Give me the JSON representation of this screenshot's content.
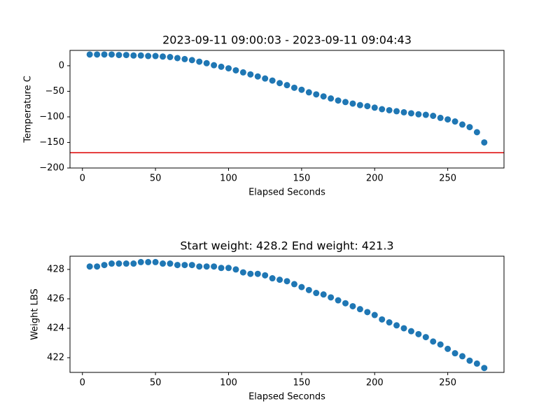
{
  "chart_data": [
    {
      "type": "scatter",
      "title": "2023-09-11 09:00:03 - 2023-09-11 09:04:43",
      "x_label": "Elapsed Seconds",
      "y_label": "Temperature C",
      "color": "#1f77b4",
      "x": [
        5,
        10,
        15,
        20,
        25,
        30,
        35,
        40,
        45,
        50,
        55,
        60,
        65,
        70,
        75,
        80,
        85,
        90,
        95,
        100,
        105,
        110,
        115,
        120,
        125,
        130,
        135,
        140,
        145,
        150,
        155,
        160,
        165,
        170,
        175,
        180,
        185,
        190,
        195,
        200,
        205,
        210,
        215,
        220,
        225,
        230,
        235,
        240,
        245,
        250,
        255,
        260,
        265,
        270,
        275
      ],
      "values": [
        22,
        22,
        22,
        22,
        21,
        21,
        20,
        20,
        19,
        19,
        18,
        17,
        15,
        13,
        11,
        8,
        5,
        1,
        -2,
        -5,
        -9,
        -13,
        -17,
        -21,
        -25,
        -29,
        -34,
        -38,
        -43,
        -47,
        -52,
        -56,
        -60,
        -64,
        -68,
        -71,
        -74,
        -77,
        -79,
        -82,
        -85,
        -87,
        -89,
        -91,
        -93,
        -95,
        -96,
        -98,
        -102,
        -105,
        -109,
        -115,
        -120,
        -130,
        -150
      ],
      "xlim": [
        -8.5,
        288.5
      ],
      "xticks": [
        0,
        50,
        100,
        150,
        200,
        250
      ],
      "ylim": [
        -200,
        30
      ],
      "yticks": [
        0,
        {
          "value": -50,
          "label": "−50"
        },
        {
          "value": -100,
          "label": "−100"
        },
        {
          "value": -150,
          "label": "−150"
        },
        {
          "value": -200,
          "label": "−200"
        }
      ],
      "reference_line": {
        "y": -170,
        "color": "#dd0000"
      }
    },
    {
      "type": "scatter",
      "title": "Start weight: 428.2 End weight: 421.3",
      "x_label": "Elapsed Seconds",
      "y_label": "Weight LBS",
      "color": "#1f77b4",
      "x": [
        5,
        10,
        15,
        20,
        25,
        30,
        35,
        40,
        45,
        50,
        55,
        60,
        65,
        70,
        75,
        80,
        85,
        90,
        95,
        100,
        105,
        110,
        115,
        120,
        125,
        130,
        135,
        140,
        145,
        150,
        155,
        160,
        165,
        170,
        175,
        180,
        185,
        190,
        195,
        200,
        205,
        210,
        215,
        220,
        225,
        230,
        235,
        240,
        245,
        250,
        255,
        260,
        265,
        270,
        275
      ],
      "values": [
        428.2,
        428.2,
        428.3,
        428.4,
        428.4,
        428.4,
        428.4,
        428.5,
        428.5,
        428.5,
        428.4,
        428.4,
        428.3,
        428.3,
        428.3,
        428.2,
        428.2,
        428.2,
        428.1,
        428.1,
        428.0,
        427.8,
        427.7,
        427.7,
        427.6,
        427.4,
        427.3,
        427.2,
        427.0,
        426.8,
        426.6,
        426.4,
        426.3,
        426.1,
        425.9,
        425.7,
        425.5,
        425.3,
        425.1,
        424.9,
        424.6,
        424.4,
        424.2,
        424.0,
        423.8,
        423.6,
        423.4,
        423.1,
        422.9,
        422.6,
        422.3,
        422.1,
        421.8,
        421.6,
        421.3
      ],
      "xlim": [
        -8.5,
        288.5
      ],
      "xticks": [
        0,
        50,
        100,
        150,
        200,
        250
      ],
      "ylim": [
        421.0,
        428.9
      ],
      "yticks": [
        422,
        424,
        426,
        428
      ]
    }
  ]
}
